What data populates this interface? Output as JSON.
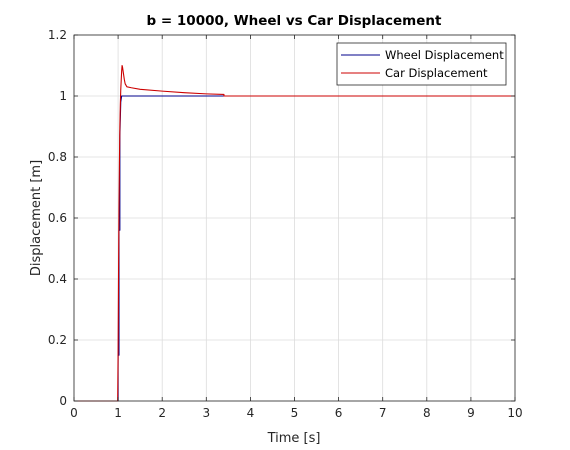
{
  "chart_data": {
    "type": "line",
    "title": "b = 10000, Wheel vs Car Displacement",
    "xlabel": "Time [s]",
    "ylabel": "Displacement [m]",
    "xlim": [
      0,
      10
    ],
    "ylim": [
      0,
      1.2
    ],
    "xticks": [
      "0",
      "1",
      "2",
      "3",
      "4",
      "5",
      "6",
      "7",
      "8",
      "9",
      "10"
    ],
    "yticks": [
      "0",
      "0.2",
      "0.4",
      "0.6",
      "0.8",
      "1",
      "1.2"
    ],
    "grid": true,
    "legend_position": "top-right",
    "series": [
      {
        "name": "Wheel Displacement",
        "color": "#00008b",
        "x": [
          0,
          0.99,
          1.0,
          1.0,
          1.02,
          1.02,
          1.04,
          1.04,
          1.06,
          1.08,
          1.1,
          1.5,
          10
        ],
        "y": [
          0,
          0,
          0,
          0.15,
          0.15,
          0.56,
          0.56,
          0.87,
          0.98,
          1.0,
          1.0,
          1.0,
          1.0
        ]
      },
      {
        "name": "Car Displacement",
        "color": "#cc0000",
        "x": [
          0,
          0.99,
          1.0,
          1.01,
          1.02,
          1.03,
          1.04,
          1.05,
          1.06,
          1.07,
          1.08,
          1.09,
          1.1,
          1.12,
          1.14,
          1.16,
          1.18,
          1.2,
          1.3,
          1.5,
          2.0,
          2.5,
          3.0,
          3.4,
          3.4,
          10
        ],
        "y": [
          0,
          0,
          0.16,
          0.42,
          0.62,
          0.78,
          0.9,
          0.97,
          1.02,
          1.05,
          1.08,
          1.1,
          1.095,
          1.075,
          1.055,
          1.04,
          1.035,
          1.03,
          1.027,
          1.022,
          1.016,
          1.011,
          1.007,
          1.005,
          1.0,
          1.0
        ]
      }
    ]
  }
}
